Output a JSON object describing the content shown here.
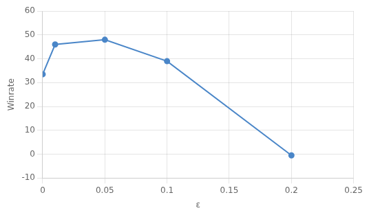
{
  "chart_data": {
    "type": "line",
    "x": [
      0,
      0.01,
      0.05,
      0.1,
      0.2
    ],
    "series": [
      {
        "name": "Winrate",
        "color": "#4a86c8",
        "values": [
          33.5,
          46.0,
          48.0,
          39.0,
          -0.5
        ]
      }
    ],
    "xlabel": "ε",
    "ylabel": "Winrate",
    "xlim": [
      0,
      0.25
    ],
    "ylim": [
      -10,
      60
    ],
    "xticks": [
      0,
      0.05,
      0.1,
      0.15,
      0.2,
      0.25
    ],
    "yticks": [
      -10,
      0,
      10,
      20,
      30,
      40,
      50,
      60
    ],
    "grid": true,
    "marker": "circle"
  }
}
